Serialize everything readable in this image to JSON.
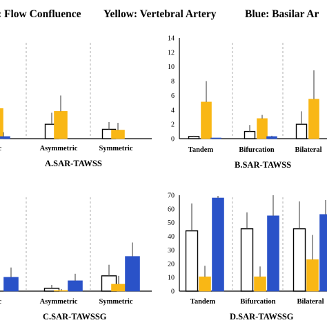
{
  "header": {
    "flow": ": Flow Confluence",
    "yellow": "Yellow: Vertebral Artery",
    "blue": "Blue: Basilar Ar"
  },
  "colors": {
    "white_bar": "#ffffff",
    "yellow": "#f9b715",
    "blue": "#2a52c8",
    "error": "#555555",
    "outline": "#000000"
  },
  "chart_data": [
    {
      "id": "A",
      "type": "bar",
      "title": "A.SAR-TAWSS",
      "categories": [
        "astic",
        "Asymmetric",
        "Symmetric"
      ],
      "series": [
        {
          "values": [
            null,
            2.0,
            1.3
          ],
          "errors": [
            null,
            1.6,
            1.0
          ]
        },
        {
          "values": [
            4.2,
            3.8,
            1.2
          ],
          "errors": [
            null,
            2.2,
            1.0
          ]
        },
        {
          "values": [
            0.3,
            null,
            null
          ],
          "errors": [
            0.6,
            null,
            null
          ]
        }
      ],
      "ylim": [
        0,
        14
      ],
      "grid": false
    },
    {
      "id": "B",
      "type": "bar",
      "title": "B.SAR-TAWSS",
      "categories": [
        "Tandem",
        "Bifurcation",
        "Bilateral"
      ],
      "yticks": [
        0,
        2,
        4,
        6,
        8,
        10,
        12,
        14
      ],
      "series": [
        {
          "values": [
            0.3,
            1.0,
            2.0
          ],
          "errors": [
            0.1,
            0.9,
            1.8
          ]
        },
        {
          "values": [
            5.1,
            2.8,
            5.5
          ],
          "errors": [
            2.9,
            0.5,
            4.0
          ]
        },
        {
          "values": [
            0.1,
            0.3,
            null
          ],
          "errors": [
            0.0,
            0.1,
            null
          ]
        }
      ],
      "ylim": [
        0,
        14
      ],
      "grid": false
    },
    {
      "id": "C",
      "type": "bar",
      "title": "C.SAR-TAWSSG",
      "categories": [
        "astic",
        "Asymmetric",
        "Symmetric"
      ],
      "series": [
        {
          "values": [
            null,
            2.0,
            11.0
          ],
          "errors": [
            null,
            2.5,
            8.0
          ]
        },
        {
          "values": [
            null,
            0.5,
            5.0
          ],
          "errors": [
            null,
            1.0,
            6.0
          ]
        },
        {
          "values": [
            10.0,
            7.5,
            25.0
          ],
          "errors": [
            7.0,
            5.0,
            10.0
          ]
        }
      ],
      "ylim": [
        0,
        70
      ],
      "grid": false
    },
    {
      "id": "D",
      "type": "bar",
      "title": "D.SAR-TAWSSG",
      "categories": [
        "Tandem",
        "Bifurcation",
        "Bilateral"
      ],
      "yticks": [
        0,
        10,
        20,
        30,
        40,
        50,
        60,
        70
      ],
      "series": [
        {
          "values": [
            44,
            45.5,
            45.5
          ],
          "errors": [
            20,
            12,
            20
          ]
        },
        {
          "values": [
            10.5,
            10.5,
            23
          ],
          "errors": [
            8,
            7.5,
            18
          ]
        },
        {
          "values": [
            68,
            55,
            56
          ],
          "errors": [
            1.5,
            15,
            10.5
          ]
        }
      ],
      "ylim": [
        0,
        70
      ],
      "grid": false
    }
  ]
}
